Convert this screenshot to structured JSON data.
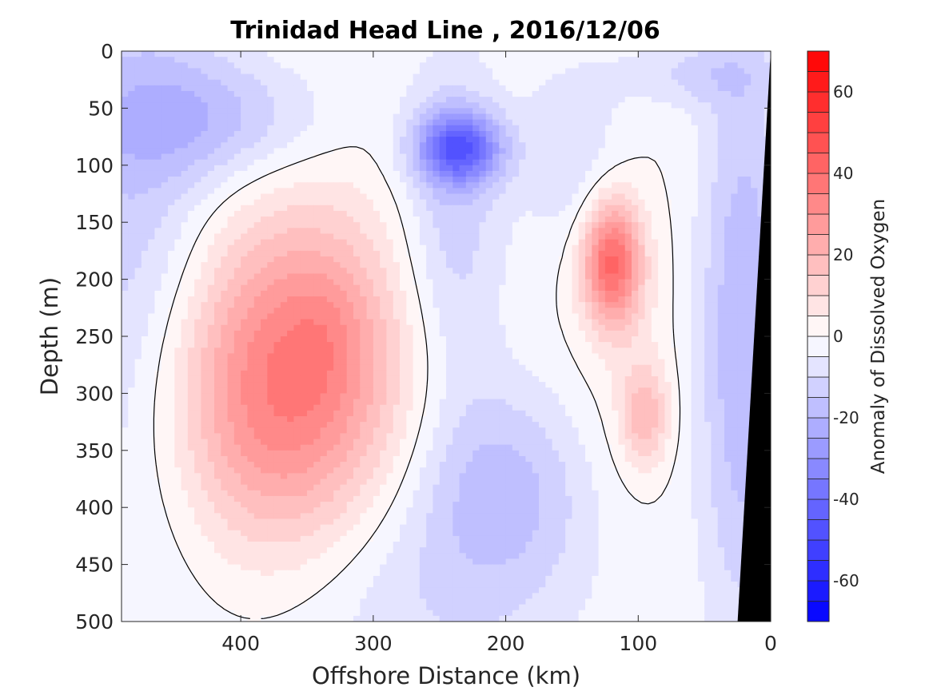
{
  "chart_data": {
    "type": "heatmap",
    "title": "Trinidad Head Line , 2016/12/06",
    "xlabel": "Offshore Distance (km)",
    "ylabel": "Depth (m)",
    "colorbar_label": "Anomaly of Dissolved Oxygen",
    "xlim": [
      490,
      0
    ],
    "ylim": [
      500,
      0
    ],
    "x_reversed": true,
    "y_reversed": true,
    "x_ticks": [
      400,
      300,
      200,
      100,
      0
    ],
    "y_ticks": [
      0,
      50,
      100,
      150,
      200,
      250,
      300,
      350,
      400,
      450,
      500
    ],
    "colorbar": {
      "range": [
        -70,
        70
      ],
      "step": 5,
      "ticks": [
        60,
        40,
        20,
        0,
        -20,
        -40,
        -60
      ],
      "colors": {
        "negative": "#0000ff",
        "zero": "#ffffff",
        "positive": "#ff0000"
      }
    },
    "zero_contour_color": "#000000",
    "bathymetry_color": "#000000",
    "bathymetry": [
      [
        0,
        0
      ],
      [
        0,
        500
      ],
      [
        25,
        500
      ]
    ],
    "anomaly_features": [
      {
        "x": 280,
        "y": 450,
        "sx": 140,
        "sy": 140,
        "value": -12
      },
      {
        "x": 480,
        "y": 150,
        "sx": 70,
        "sy": 300,
        "value": -15
      },
      {
        "x": 420,
        "y": 60,
        "sx": 90,
        "sy": 55,
        "value": -15
      },
      {
        "x": 240,
        "y": 150,
        "sx": 40,
        "sy": 160,
        "value": -14
      },
      {
        "x": 235,
        "y": 85,
        "sx": 32,
        "sy": 32,
        "value": -38
      },
      {
        "x": 20,
        "y": 250,
        "sx": 35,
        "sy": 260,
        "value": -20
      },
      {
        "x": 60,
        "y": 20,
        "sx": 60,
        "sy": 30,
        "value": -10
      },
      {
        "x": 150,
        "y": 90,
        "sx": 40,
        "sy": 80,
        "value": -10
      },
      {
        "x": 200,
        "y": 380,
        "sx": 60,
        "sy": 90,
        "value": -12
      },
      {
        "x": 365,
        "y": 300,
        "sx": 90,
        "sy": 150,
        "value": 40
      },
      {
        "x": 335,
        "y": 240,
        "sx": 30,
        "sy": 60,
        "value": 5
      },
      {
        "x": 120,
        "y": 185,
        "sx": 22,
        "sy": 55,
        "value": 40
      },
      {
        "x": 95,
        "y": 320,
        "sx": 18,
        "sy": 45,
        "value": 18
      },
      {
        "x": 110,
        "y": 260,
        "sx": 40,
        "sy": 150,
        "value": 4
      }
    ]
  }
}
